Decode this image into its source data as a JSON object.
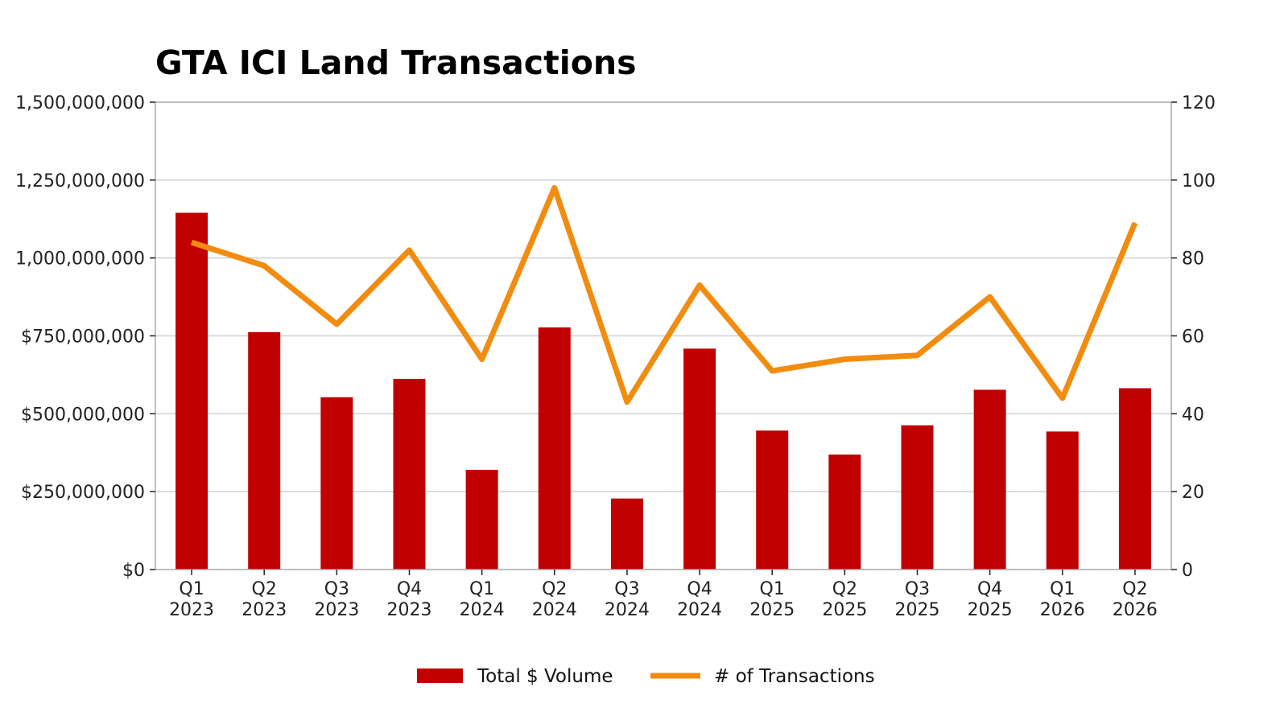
{
  "chart_data": {
    "type": "bar+line",
    "title": "GTA ICI Land Transactions",
    "categories": [
      [
        "Q1",
        "2023"
      ],
      [
        "Q2",
        "2023"
      ],
      [
        "Q3",
        "2023"
      ],
      [
        "Q4",
        "2023"
      ],
      [
        "Q1",
        "2024"
      ],
      [
        "Q2",
        "2024"
      ],
      [
        "Q3",
        "2024"
      ],
      [
        "Q4",
        "2024"
      ],
      [
        "Q1",
        "2025"
      ],
      [
        "Q2",
        "2025"
      ],
      [
        "Q3",
        "2025"
      ],
      [
        "Q4",
        "2025"
      ],
      [
        "Q1",
        "2026"
      ],
      [
        "Q2",
        "2026"
      ]
    ],
    "series": [
      {
        "name": "Total $ Volume",
        "type": "bar",
        "axis": "left",
        "color": "#c00000",
        "values": [
          1145000000,
          762000000,
          553000000,
          612000000,
          320000000,
          777000000,
          228000000,
          709000000,
          446000000,
          369000000,
          463000000,
          577000000,
          443000000,
          582000000
        ]
      },
      {
        "name": "# of Transactions",
        "type": "line",
        "axis": "right",
        "color": "#f28c0f",
        "values": [
          84,
          78,
          63,
          82,
          54,
          98,
          43,
          73,
          51,
          54,
          55,
          70,
          44,
          89
        ]
      }
    ],
    "y_left": {
      "lim": [
        0,
        1500000000
      ],
      "ticks": [
        0,
        250000000,
        500000000,
        750000000,
        1000000000,
        1250000000,
        1500000000
      ],
      "tick_labels": [
        "$0",
        "$250,000,000",
        "$500,000,000",
        "$750,000,000",
        "1,000,000,000",
        "1,250,000,000",
        "1,500,000,000"
      ]
    },
    "y_right": {
      "lim": [
        0,
        120
      ],
      "ticks": [
        0,
        20,
        40,
        60,
        80,
        100,
        120
      ],
      "tick_labels": [
        "0",
        "20",
        "40",
        "60",
        "80",
        "100",
        "120"
      ]
    },
    "grid": "horizontal",
    "legend_position": "bottom-center"
  }
}
